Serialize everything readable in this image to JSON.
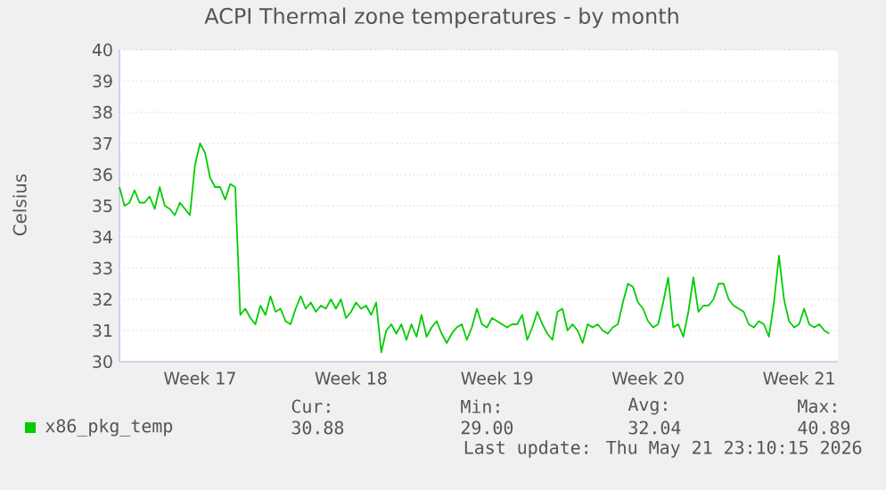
{
  "chart_data": {
    "type": "line",
    "title": "ACPI Thermal zone temperatures - by month",
    "ylabel": "Celsius",
    "ylim": [
      30,
      40
    ],
    "yticks": [
      30,
      31,
      32,
      33,
      34,
      35,
      36,
      37,
      38,
      39,
      40
    ],
    "grid": "y",
    "legend": "bottom",
    "categories": [
      null,
      null,
      null,
      null,
      null,
      null,
      null,
      null,
      null,
      null,
      null,
      null,
      null,
      null,
      null,
      null,
      "Week 17",
      null,
      null,
      null,
      null,
      null,
      null,
      null,
      null,
      null,
      null,
      null,
      null,
      null,
      null,
      null,
      null,
      null,
      null,
      null,
      null,
      null,
      null,
      null,
      null,
      null,
      null,
      null,
      null,
      null,
      "Week 18",
      null,
      null,
      null,
      null,
      null,
      null,
      null,
      null,
      null,
      null,
      null,
      null,
      null,
      null,
      null,
      null,
      null,
      null,
      null,
      null,
      null,
      null,
      null,
      null,
      null,
      null,
      null,
      null,
      "Week 19",
      null,
      null,
      null,
      null,
      null,
      null,
      null,
      null,
      null,
      null,
      null,
      null,
      null,
      null,
      null,
      null,
      null,
      null,
      null,
      null,
      null,
      null,
      null,
      null,
      null,
      null,
      null,
      null,
      null,
      "Week 20",
      null,
      null,
      null,
      null,
      null,
      null,
      null,
      null,
      null,
      null,
      null,
      null,
      null,
      null,
      null,
      null,
      null,
      null,
      null,
      null,
      null,
      null,
      null,
      null,
      null,
      null,
      null,
      null,
      null,
      "Week 21",
      null,
      null,
      null,
      null,
      null,
      null
    ],
    "series": [
      {
        "name": "x86_pkg_temp",
        "color": "#00cc00",
        "values": [
          35.6,
          35.0,
          35.1,
          35.5,
          35.1,
          35.1,
          35.3,
          34.9,
          35.6,
          35.0,
          34.9,
          34.7,
          35.1,
          34.9,
          34.7,
          36.3,
          37.0,
          36.7,
          35.9,
          35.6,
          35.6,
          35.2,
          35.7,
          35.6,
          31.5,
          31.7,
          31.4,
          31.2,
          31.8,
          31.5,
          32.1,
          31.6,
          31.7,
          31.3,
          31.2,
          31.7,
          32.1,
          31.7,
          31.9,
          31.6,
          31.8,
          31.7,
          32.0,
          31.7,
          32.0,
          31.4,
          31.6,
          31.9,
          31.7,
          31.8,
          31.5,
          31.9,
          30.3,
          31.0,
          31.2,
          30.9,
          31.2,
          30.7,
          31.2,
          30.8,
          31.5,
          30.8,
          31.1,
          31.3,
          30.9,
          30.6,
          30.9,
          31.1,
          31.2,
          30.7,
          31.1,
          31.7,
          31.2,
          31.1,
          31.4,
          31.3,
          31.2,
          31.1,
          31.2,
          31.2,
          31.5,
          30.7,
          31.1,
          31.6,
          31.2,
          30.9,
          30.7,
          31.6,
          31.7,
          31.0,
          31.2,
          31.0,
          30.6,
          31.2,
          31.1,
          31.2,
          31.0,
          30.9,
          31.1,
          31.2,
          31.9,
          32.5,
          32.4,
          31.9,
          31.7,
          31.3,
          31.1,
          31.2,
          31.9,
          32.7,
          31.1,
          31.2,
          30.8,
          31.6,
          32.7,
          31.6,
          31.8,
          31.8,
          32.0,
          32.5,
          32.5,
          32.0,
          31.8,
          31.7,
          31.6,
          31.2,
          31.1,
          31.3,
          31.2,
          30.8,
          31.9,
          33.4,
          32.0,
          31.3,
          31.1,
          31.2,
          31.7,
          31.2,
          31.1,
          31.2,
          31.0,
          30.9
        ]
      }
    ],
    "annotations": [
      "Cur:",
      "Min:",
      "Avg:",
      "Max:",
      "30.88",
      "29.00",
      "32.04",
      "40.89",
      "Last update: Thu May 21 23:10:15 2026"
    ]
  }
}
